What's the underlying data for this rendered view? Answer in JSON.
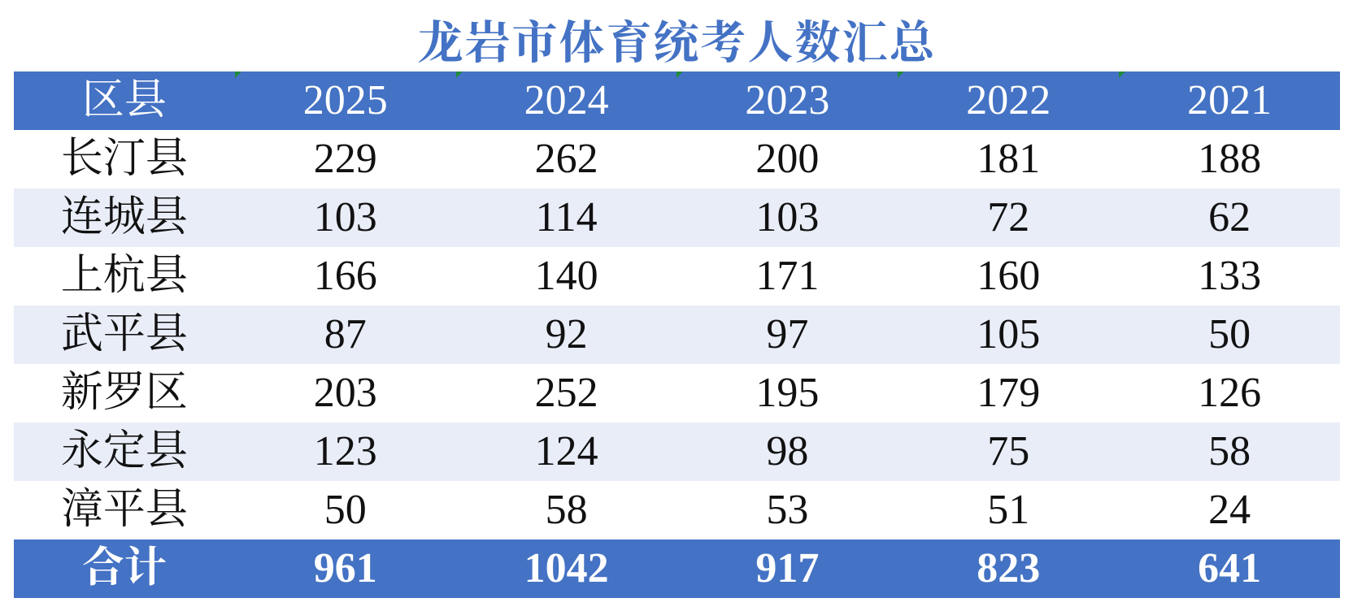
{
  "title": "龙岩市体育统考人数汇总",
  "table": {
    "header": [
      "区县",
      "2025",
      "2024",
      "2023",
      "2022",
      "2021"
    ],
    "rows": [
      [
        "长汀县",
        229,
        262,
        200,
        181,
        188
      ],
      [
        "连城县",
        103,
        114,
        103,
        72,
        62
      ],
      [
        "上杭县",
        166,
        140,
        171,
        160,
        133
      ],
      [
        "武平县",
        87,
        92,
        97,
        105,
        50
      ],
      [
        "新罗区",
        203,
        252,
        195,
        179,
        126
      ],
      [
        "永定县",
        123,
        124,
        98,
        75,
        58
      ],
      [
        "漳平县",
        50,
        58,
        53,
        51,
        24
      ]
    ],
    "total": [
      "合计",
      961,
      1042,
      917,
      823,
      641
    ]
  }
}
